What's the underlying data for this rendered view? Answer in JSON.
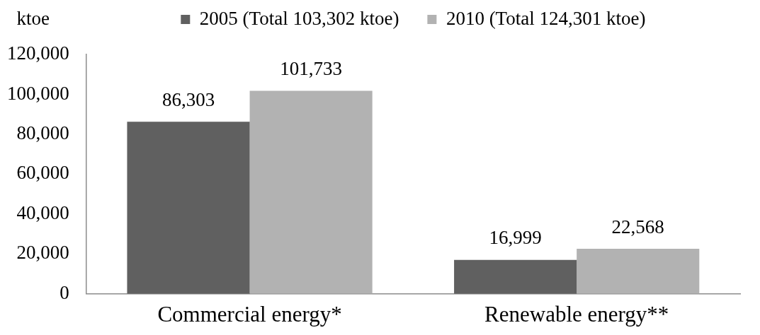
{
  "chart_data": {
    "type": "bar",
    "ylabel": "ktoe",
    "categories": [
      "Commercial energy*",
      "Renewable energy**"
    ],
    "series": [
      {
        "name": "2005 (Total 103,302 ktoe)",
        "color": "#606060",
        "values": [
          86303,
          16999
        ],
        "value_labels": [
          "86,303",
          "16,999"
        ]
      },
      {
        "name": "2010 (Total 124,301 ktoe)",
        "color": "#b2b2b2",
        "values": [
          101733,
          22568
        ],
        "value_labels": [
          "101,733",
          "22,568"
        ]
      }
    ],
    "ylim": [
      0,
      120000
    ],
    "yticks": [
      0,
      {
        "value": 20000,
        "label": "20,000"
      },
      {
        "value": 40000,
        "label": "40,000"
      },
      {
        "value": 60000,
        "label": "60,000"
      },
      {
        "value": 80000,
        "label": "80,000"
      },
      {
        "value": 100000,
        "label": "100,000"
      },
      {
        "value": 120000,
        "label": "120,000"
      }
    ],
    "legend": "top",
    "grid": false
  }
}
